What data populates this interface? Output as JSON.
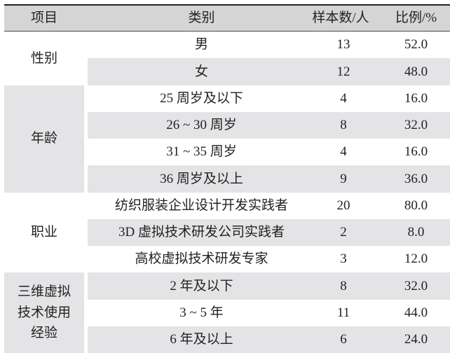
{
  "table": {
    "headers": [
      "项目",
      "类别",
      "样本数/人",
      "比例/%"
    ],
    "groups": [
      {
        "label": "性别",
        "rows": [
          {
            "category": "男",
            "count": "13",
            "percent": "52.0"
          },
          {
            "category": "女",
            "count": "12",
            "percent": "48.0"
          }
        ]
      },
      {
        "label": "年龄",
        "rows": [
          {
            "category": "25 周岁及以下",
            "count": "4",
            "percent": "16.0"
          },
          {
            "category": "26 ~ 30 周岁",
            "count": "8",
            "percent": "32.0"
          },
          {
            "category": "31 ~ 35 周岁",
            "count": "4",
            "percent": "16.0"
          },
          {
            "category": "36 周岁及以上",
            "count": "9",
            "percent": "36.0"
          }
        ]
      },
      {
        "label": "职业",
        "rows": [
          {
            "category": "纺织服装企业设计开发实践者",
            "count": "20",
            "percent": "80.0"
          },
          {
            "category": "3D 虚拟技术研发公司实践者",
            "count": "2",
            "percent": "8.0"
          },
          {
            "category": "高校虚拟技术研发专家",
            "count": "3",
            "percent": "12.0"
          }
        ]
      },
      {
        "label": "三维虚拟技术使用经验",
        "rows": [
          {
            "category": "2 年及以下",
            "count": "8",
            "percent": "32.0"
          },
          {
            "category": "3 ~ 5 年",
            "count": "11",
            "percent": "44.0"
          },
          {
            "category": "6 年及以上",
            "count": "6",
            "percent": "24.0"
          }
        ]
      }
    ]
  }
}
